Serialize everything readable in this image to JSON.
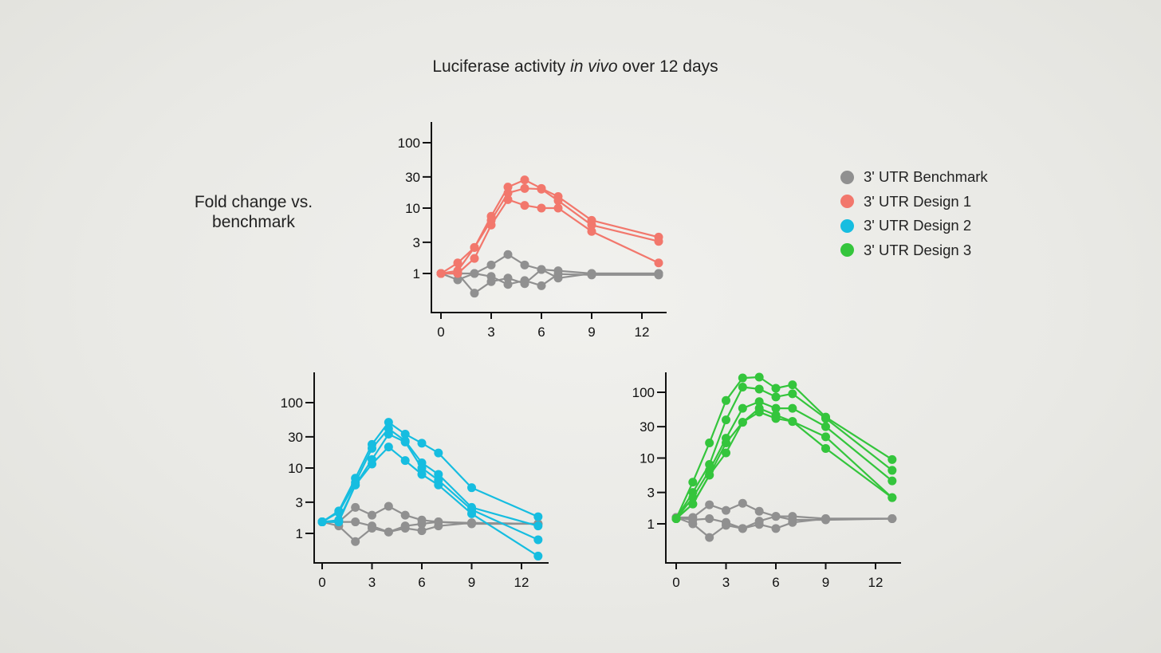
{
  "title_prefix": "Luciferase activity ",
  "title_italic": "in vivo",
  "title_suffix": " over 12 days",
  "ylabel_line1": "Fold change vs.",
  "ylabel_line2": "benchmark",
  "colors": {
    "benchmark": "#909090",
    "design1": "#f2776c",
    "design2": "#16bde0",
    "design3": "#34c53c",
    "axis": "#111111"
  },
  "legend": [
    {
      "label": "3' UTR Benchmark",
      "color": "#909090"
    },
    {
      "label": "3' UTR Design 1",
      "color": "#f2776c"
    },
    {
      "label": "3' UTR Design 2",
      "color": "#16bde0"
    },
    {
      "label": "3' UTR Design 3",
      "color": "#34c53c"
    }
  ],
  "chart_data": [
    {
      "type": "line",
      "name": "Design 1 vs benchmark",
      "yscale": "log",
      "x": [
        0,
        1,
        2,
        3,
        4,
        5,
        6,
        7,
        9,
        13
      ],
      "xticks": [
        0,
        3,
        6,
        9,
        12
      ],
      "xtick_labels": [
        "0",
        "3",
        "6",
        "9",
        "12"
      ],
      "yticks": [
        1,
        3,
        10,
        30,
        100
      ],
      "ytick_labels": [
        "1",
        "3",
        "10",
        "30",
        "100"
      ],
      "xlim": [
        -0.6,
        13.4
      ],
      "ylim": [
        0.25,
        180
      ],
      "series": [
        {
          "name": "3' UTR Benchmark",
          "group": "benchmark",
          "values": [
            1,
            0.8,
            1,
            1.35,
            1.95,
            1.35,
            1.15,
            1.1,
            1,
            1
          ]
        },
        {
          "name": "3' UTR Benchmark",
          "group": "benchmark",
          "values": [
            1,
            1,
            0.5,
            0.75,
            0.85,
            0.7,
            1.15,
            0.85,
            1,
            1
          ]
        },
        {
          "name": "3' UTR Benchmark",
          "group": "benchmark",
          "values": [
            1,
            1,
            1,
            0.9,
            0.68,
            0.78,
            0.65,
            0.98,
            0.95,
            0.95
          ]
        },
        {
          "name": "3' UTR Design 1",
          "group": "design1",
          "values": [
            1,
            1.45,
            2.5,
            7.5,
            21,
            27,
            20,
            15,
            6.5,
            3.6
          ]
        },
        {
          "name": "3' UTR Design 1",
          "group": "design1",
          "values": [
            1,
            1.1,
            2.5,
            6.5,
            17,
            20,
            19.5,
            13,
            5.5,
            3.1
          ]
        },
        {
          "name": "3' UTR Design 1",
          "group": "design1",
          "values": [
            1,
            1,
            1.7,
            5.5,
            13.5,
            11,
            10,
            10,
            4.4,
            1.45
          ]
        }
      ]
    },
    {
      "type": "line",
      "name": "Design 2 vs benchmark",
      "yscale": "log",
      "x": [
        0,
        1,
        2,
        3,
        4,
        5,
        6,
        7,
        9,
        13
      ],
      "xticks": [
        0,
        3,
        6,
        9,
        12
      ],
      "xtick_labels": [
        "0",
        "3",
        "6",
        "9",
        "12"
      ],
      "yticks": [
        1,
        3,
        10,
        30,
        100
      ],
      "ytick_labels": [
        "1",
        "3",
        "10",
        "30",
        "100"
      ],
      "xlim": [
        -0.6,
        13.4
      ],
      "ylim": [
        0.25,
        180
      ],
      "series": [
        {
          "name": "3' UTR Benchmark",
          "group": "benchmark",
          "values": [
            1.5,
            1.5,
            2.5,
            1.9,
            2.6,
            1.9,
            1.6,
            1.5,
            1.4,
            1.4
          ]
        },
        {
          "name": "3' UTR Benchmark",
          "group": "benchmark",
          "values": [
            1.5,
            1.3,
            0.75,
            1.2,
            1.05,
            1.3,
            1.4,
            1.5,
            1.45,
            1.4
          ]
        },
        {
          "name": "3' UTR Benchmark",
          "group": "benchmark",
          "values": [
            1.5,
            1.5,
            1.5,
            1.3,
            1.05,
            1.2,
            1.1,
            1.3,
            1.45,
            1.4
          ]
        },
        {
          "name": "3' UTR Design 2",
          "group": "design2",
          "values": [
            1.5,
            2.2,
            7,
            23,
            50,
            33,
            24,
            17,
            5,
            1.8
          ]
        },
        {
          "name": "3' UTR Design 2",
          "group": "design2",
          "values": [
            1.5,
            2.1,
            6,
            20,
            40,
            26,
            12,
            8,
            2.5,
            1.3
          ]
        },
        {
          "name": "3' UTR Design 2",
          "group": "design2",
          "values": [
            1.5,
            1.6,
            5.5,
            13.5,
            33,
            25,
            10,
            6.5,
            2.3,
            0.8
          ]
        },
        {
          "name": "3' UTR Design 2",
          "group": "design2",
          "values": [
            1.5,
            1.5,
            5.5,
            11.5,
            21,
            13,
            8,
            5.5,
            2,
            0.45
          ]
        }
      ]
    },
    {
      "type": "line",
      "name": "Design 3 vs benchmark",
      "yscale": "log",
      "x": [
        0,
        1,
        2,
        3,
        4,
        5,
        6,
        7,
        9,
        13
      ],
      "xticks": [
        0,
        3,
        6,
        9,
        12
      ],
      "xtick_labels": [
        "0",
        "3",
        "6",
        "9",
        "12"
      ],
      "yticks": [
        1,
        3,
        10,
        30,
        100
      ],
      "ytick_labels": [
        "1",
        "3",
        "10",
        "30",
        "100"
      ],
      "xlim": [
        -0.6,
        13.4
      ],
      "ylim": [
        0.25,
        180
      ],
      "series": [
        {
          "name": "3' UTR Benchmark",
          "group": "benchmark",
          "values": [
            1.25,
            1.25,
            1.95,
            1.6,
            2.05,
            1.55,
            1.3,
            1.3,
            1.2,
            1.2
          ]
        },
        {
          "name": "3' UTR Benchmark",
          "group": "benchmark",
          "values": [
            1.25,
            1.0,
            0.62,
            0.95,
            0.85,
            0.98,
            0.85,
            1.05,
            1.2,
            1.2
          ]
        },
        {
          "name": "3' UTR Benchmark",
          "group": "benchmark",
          "values": [
            1.25,
            1.15,
            1.2,
            1.05,
            0.85,
            1.1,
            1.3,
            1.15,
            1.15,
            1.2
          ]
        },
        {
          "name": "3' UTR Design 3",
          "group": "design3",
          "values": [
            1.2,
            4.3,
            17,
            75,
            165,
            170,
            115,
            130,
            42,
            9.5
          ]
        },
        {
          "name": "3' UTR Design 3",
          "group": "design3",
          "values": [
            1.2,
            3,
            8,
            38,
            120,
            112,
            85,
            95,
            40,
            6.5
          ]
        },
        {
          "name": "3' UTR Design 3",
          "group": "design3",
          "values": [
            1.2,
            2.5,
            6.5,
            20,
            57,
            72,
            57,
            57,
            30,
            4.5
          ]
        },
        {
          "name": "3' UTR Design 3",
          "group": "design3",
          "values": [
            1.2,
            2,
            5.5,
            17,
            35,
            57,
            45,
            36,
            21,
            2.5
          ]
        },
        {
          "name": "3' UTR Design 3",
          "group": "design3",
          "values": [
            1.2,
            2,
            5.5,
            12,
            35,
            50,
            40,
            36,
            14,
            2.5
          ]
        }
      ]
    }
  ]
}
